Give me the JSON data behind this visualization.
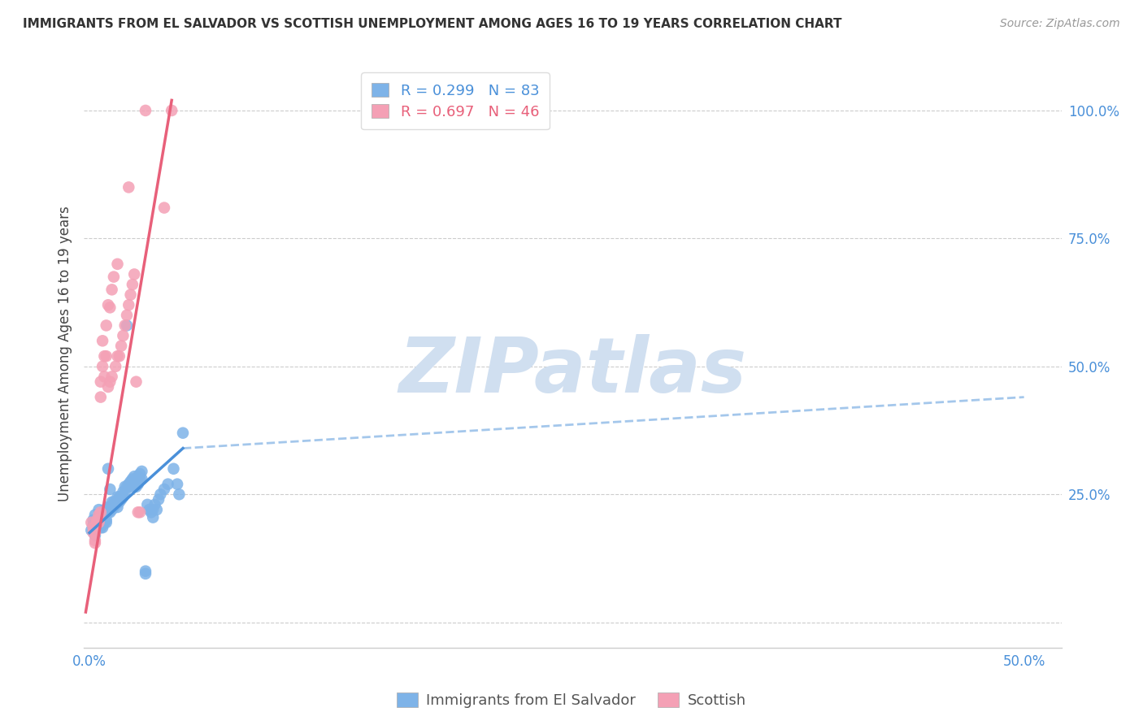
{
  "title": "IMMIGRANTS FROM EL SALVADOR VS SCOTTISH UNEMPLOYMENT AMONG AGES 16 TO 19 YEARS CORRELATION CHART",
  "source": "Source: ZipAtlas.com",
  "ylabel": "Unemployment Among Ages 16 to 19 years",
  "legend_blue_r": "R = 0.299",
  "legend_blue_n": "N = 83",
  "legend_pink_r": "R = 0.697",
  "legend_pink_n": "N = 46",
  "legend_label_blue": "Immigrants from El Salvador",
  "legend_label_pink": "Scottish",
  "blue_color": "#7EB3E8",
  "pink_color": "#F4A0B5",
  "blue_line_color": "#4A90D9",
  "pink_line_color": "#E8607A",
  "watermark_color": "#D0DFF0",
  "background_color": "#FFFFFF",
  "blue_scatter": [
    [
      0.001,
      0.18
    ],
    [
      0.002,
      0.19
    ],
    [
      0.002,
      0.2
    ],
    [
      0.003,
      0.21
    ],
    [
      0.003,
      0.185
    ],
    [
      0.003,
      0.17
    ],
    [
      0.004,
      0.2
    ],
    [
      0.004,
      0.19
    ],
    [
      0.004,
      0.185
    ],
    [
      0.005,
      0.22
    ],
    [
      0.005,
      0.2
    ],
    [
      0.005,
      0.195
    ],
    [
      0.006,
      0.21
    ],
    [
      0.006,
      0.195
    ],
    [
      0.006,
      0.185
    ],
    [
      0.007,
      0.205
    ],
    [
      0.007,
      0.19
    ],
    [
      0.007,
      0.185
    ],
    [
      0.008,
      0.22
    ],
    [
      0.008,
      0.215
    ],
    [
      0.008,
      0.2
    ],
    [
      0.008,
      0.195
    ],
    [
      0.009,
      0.215
    ],
    [
      0.009,
      0.2
    ],
    [
      0.009,
      0.195
    ],
    [
      0.01,
      0.3
    ],
    [
      0.01,
      0.225
    ],
    [
      0.01,
      0.215
    ],
    [
      0.011,
      0.26
    ],
    [
      0.011,
      0.225
    ],
    [
      0.011,
      0.215
    ],
    [
      0.012,
      0.235
    ],
    [
      0.012,
      0.225
    ],
    [
      0.012,
      0.22
    ],
    [
      0.013,
      0.235
    ],
    [
      0.013,
      0.225
    ],
    [
      0.014,
      0.235
    ],
    [
      0.014,
      0.23
    ],
    [
      0.015,
      0.245
    ],
    [
      0.015,
      0.235
    ],
    [
      0.015,
      0.225
    ],
    [
      0.016,
      0.245
    ],
    [
      0.016,
      0.235
    ],
    [
      0.017,
      0.245
    ],
    [
      0.017,
      0.24
    ],
    [
      0.018,
      0.255
    ],
    [
      0.018,
      0.245
    ],
    [
      0.019,
      0.265
    ],
    [
      0.019,
      0.255
    ],
    [
      0.02,
      0.58
    ],
    [
      0.02,
      0.265
    ],
    [
      0.021,
      0.27
    ],
    [
      0.021,
      0.265
    ],
    [
      0.022,
      0.275
    ],
    [
      0.022,
      0.265
    ],
    [
      0.023,
      0.28
    ],
    [
      0.023,
      0.27
    ],
    [
      0.024,
      0.285
    ],
    [
      0.025,
      0.275
    ],
    [
      0.025,
      0.265
    ],
    [
      0.026,
      0.285
    ],
    [
      0.026,
      0.27
    ],
    [
      0.027,
      0.29
    ],
    [
      0.027,
      0.28
    ],
    [
      0.028,
      0.295
    ],
    [
      0.028,
      0.28
    ],
    [
      0.03,
      0.1
    ],
    [
      0.03,
      0.095
    ],
    [
      0.031,
      0.23
    ],
    [
      0.032,
      0.22
    ],
    [
      0.033,
      0.215
    ],
    [
      0.034,
      0.22
    ],
    [
      0.034,
      0.205
    ],
    [
      0.035,
      0.23
    ],
    [
      0.036,
      0.22
    ],
    [
      0.037,
      0.24
    ],
    [
      0.038,
      0.25
    ],
    [
      0.04,
      0.26
    ],
    [
      0.042,
      0.27
    ],
    [
      0.045,
      0.3
    ],
    [
      0.047,
      0.27
    ],
    [
      0.048,
      0.25
    ],
    [
      0.05,
      0.37
    ]
  ],
  "pink_scatter": [
    [
      0.001,
      0.195
    ],
    [
      0.002,
      0.185
    ],
    [
      0.002,
      0.175
    ],
    [
      0.003,
      0.175
    ],
    [
      0.003,
      0.16
    ],
    [
      0.003,
      0.155
    ],
    [
      0.004,
      0.2
    ],
    [
      0.004,
      0.195
    ],
    [
      0.005,
      0.21
    ],
    [
      0.005,
      0.2
    ],
    [
      0.005,
      0.195
    ],
    [
      0.006,
      0.215
    ],
    [
      0.006,
      0.47
    ],
    [
      0.006,
      0.44
    ],
    [
      0.007,
      0.55
    ],
    [
      0.007,
      0.5
    ],
    [
      0.008,
      0.52
    ],
    [
      0.008,
      0.48
    ],
    [
      0.009,
      0.58
    ],
    [
      0.009,
      0.52
    ],
    [
      0.01,
      0.62
    ],
    [
      0.01,
      0.46
    ],
    [
      0.011,
      0.615
    ],
    [
      0.011,
      0.47
    ],
    [
      0.012,
      0.65
    ],
    [
      0.012,
      0.48
    ],
    [
      0.013,
      0.675
    ],
    [
      0.014,
      0.5
    ],
    [
      0.015,
      0.7
    ],
    [
      0.015,
      0.52
    ],
    [
      0.016,
      0.52
    ],
    [
      0.017,
      0.54
    ],
    [
      0.018,
      0.56
    ],
    [
      0.019,
      0.58
    ],
    [
      0.02,
      0.6
    ],
    [
      0.021,
      0.85
    ],
    [
      0.021,
      0.62
    ],
    [
      0.022,
      0.64
    ],
    [
      0.023,
      0.66
    ],
    [
      0.024,
      0.68
    ],
    [
      0.025,
      0.47
    ],
    [
      0.026,
      0.215
    ],
    [
      0.027,
      0.215
    ],
    [
      0.03,
      1.0
    ],
    [
      0.04,
      0.81
    ],
    [
      0.044,
      1.0
    ]
  ],
  "blue_line_solid": [
    [
      0.0,
      0.175
    ],
    [
      0.05,
      0.34
    ]
  ],
  "blue_line_dashed": [
    [
      0.05,
      0.34
    ],
    [
      0.5,
      0.44
    ]
  ],
  "pink_line": [
    [
      -0.002,
      0.02
    ],
    [
      0.044,
      1.02
    ]
  ],
  "xlim": [
    -0.003,
    0.52
  ],
  "ylim": [
    -0.05,
    1.1
  ],
  "xticks": [
    0.0,
    0.05,
    0.1,
    0.15,
    0.2,
    0.25,
    0.3,
    0.35,
    0.4,
    0.45,
    0.5
  ],
  "yticks": [
    0.0,
    0.25,
    0.5,
    0.75,
    1.0
  ],
  "grid_color": "#CCCCCC",
  "title_fontsize": 11,
  "tick_fontsize": 12,
  "ylabel_fontsize": 12
}
